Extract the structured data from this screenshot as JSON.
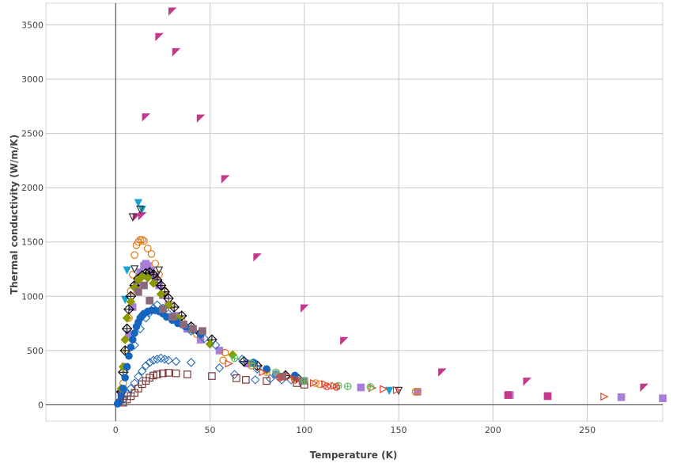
{
  "chart_data": {
    "type": "scatter",
    "title": "",
    "xlabel": "Temperature (K)",
    "ylabel": "Thermal conductivity (W/m/K)",
    "xlim": [
      -37,
      290
    ],
    "ylim": [
      -150,
      3700
    ],
    "x_ticks": [
      0,
      50,
      100,
      150,
      200,
      250
    ],
    "y_ticks": [
      0,
      500,
      1000,
      1500,
      2000,
      2500,
      3000,
      3500
    ],
    "grid": true,
    "legend": "none",
    "series": [
      {
        "marker": "triangle-ul",
        "color": "#c2388b",
        "filled": true,
        "points": [
          [
            30,
            3625
          ],
          [
            23,
            3390
          ],
          [
            32,
            3250
          ],
          [
            16,
            2650
          ],
          [
            45,
            2640
          ],
          [
            58,
            2080
          ],
          [
            75,
            1360
          ],
          [
            100,
            890
          ],
          [
            121,
            590
          ],
          [
            173,
            300
          ],
          [
            218,
            215
          ],
          [
            280,
            160
          ],
          [
            14,
            1740
          ],
          [
            11,
            1730
          ]
        ]
      },
      {
        "marker": "square",
        "color": "#a97ed9",
        "filled": true,
        "points": [
          [
            3,
            120
          ],
          [
            5,
            350
          ],
          [
            7,
            650
          ],
          [
            9,
            900
          ],
          [
            11,
            1100
          ],
          [
            13,
            1220
          ],
          [
            15,
            1280
          ],
          [
            16,
            1300
          ],
          [
            17,
            1280
          ],
          [
            19,
            1240
          ],
          [
            21,
            1180
          ],
          [
            23,
            1100
          ],
          [
            25,
            1010
          ],
          [
            28,
            920
          ],
          [
            32,
            820
          ],
          [
            38,
            700
          ],
          [
            45,
            600
          ],
          [
            55,
            500
          ],
          [
            70,
            380
          ],
          [
            85,
            280
          ],
          [
            100,
            220
          ],
          [
            130,
            160
          ],
          [
            160,
            120
          ],
          [
            209,
            90
          ],
          [
            229,
            80
          ],
          [
            268,
            70
          ],
          [
            290,
            60
          ]
        ]
      },
      {
        "marker": "circle-open",
        "color": "#e07b17",
        "filled": false,
        "points": [
          [
            4,
            200
          ],
          [
            6,
            500
          ],
          [
            7,
            800
          ],
          [
            8,
            1050
          ],
          [
            9,
            1200
          ],
          [
            10,
            1380
          ],
          [
            11,
            1470
          ],
          [
            12,
            1500
          ],
          [
            13,
            1520
          ],
          [
            14,
            1520
          ],
          [
            15,
            1510
          ],
          [
            17,
            1440
          ],
          [
            19,
            1390
          ],
          [
            21,
            1300
          ],
          [
            23,
            1200
          ],
          [
            26,
            1050
          ],
          [
            30,
            920
          ],
          [
            35,
            780
          ],
          [
            43,
            650
          ],
          [
            58,
            480
          ],
          [
            80,
            300
          ],
          [
            108,
            190
          ],
          [
            160,
            120
          ]
        ]
      },
      {
        "marker": "triangle-down",
        "color": "#18a3d6",
        "filled": true,
        "points": [
          [
            5,
            970
          ],
          [
            6,
            1240
          ],
          [
            12,
            1860
          ],
          [
            14,
            1800
          ],
          [
            145,
            130
          ]
        ]
      },
      {
        "marker": "triangle-down-open",
        "color": "#333333",
        "filled": false,
        "points": [
          [
            9,
            1730
          ],
          [
            13,
            1800
          ],
          [
            10,
            1250
          ],
          [
            23,
            1240
          ],
          [
            150,
            130
          ]
        ]
      },
      {
        "marker": "diamond-cross",
        "color": "#000000",
        "filled": false,
        "points": [
          [
            3,
            120
          ],
          [
            4,
            300
          ],
          [
            5,
            500
          ],
          [
            6,
            700
          ],
          [
            7,
            880
          ],
          [
            8,
            1000
          ],
          [
            10,
            1100
          ],
          [
            12,
            1160
          ],
          [
            14,
            1190
          ],
          [
            16,
            1210
          ],
          [
            18,
            1220
          ],
          [
            20,
            1200
          ],
          [
            22,
            1150
          ],
          [
            24,
            1100
          ],
          [
            26,
            1040
          ],
          [
            28,
            980
          ],
          [
            31,
            900
          ],
          [
            35,
            820
          ],
          [
            40,
            720
          ],
          [
            45,
            660
          ],
          [
            51,
            600
          ],
          [
            68,
            400
          ],
          [
            75,
            360
          ],
          [
            90,
            270
          ],
          [
            96,
            250
          ]
        ]
      },
      {
        "marker": "diamond",
        "color": "#8a9a00",
        "filled": true,
        "points": [
          [
            3,
            150
          ],
          [
            4,
            350
          ],
          [
            5,
            600
          ],
          [
            6,
            800
          ],
          [
            8,
            950
          ],
          [
            10,
            1080
          ],
          [
            12,
            1150
          ],
          [
            14,
            1180
          ],
          [
            17,
            1170
          ],
          [
            20,
            1120
          ],
          [
            24,
            1020
          ],
          [
            28,
            920
          ],
          [
            33,
            800
          ],
          [
            40,
            700
          ],
          [
            50,
            560
          ],
          [
            62,
            460
          ],
          [
            80,
            320
          ],
          [
            95,
            250
          ]
        ]
      },
      {
        "marker": "diamond-open",
        "color": "#2a6fb5",
        "filled": false,
        "points": [
          [
            4,
            50
          ],
          [
            6,
            100
          ],
          [
            8,
            150
          ],
          [
            10,
            200
          ],
          [
            12,
            260
          ],
          [
            14,
            310
          ],
          [
            16,
            360
          ],
          [
            18,
            390
          ],
          [
            20,
            410
          ],
          [
            22,
            420
          ],
          [
            24,
            430
          ],
          [
            26,
            420
          ],
          [
            28,
            410
          ],
          [
            32,
            400
          ],
          [
            40,
            390
          ],
          [
            55,
            340
          ],
          [
            63,
            280
          ],
          [
            74,
            230
          ],
          [
            82,
            240
          ],
          [
            88,
            230
          ],
          [
            93,
            230
          ],
          [
            10,
            550
          ],
          [
            13,
            700
          ],
          [
            16,
            800
          ],
          [
            18,
            850
          ],
          [
            20,
            890
          ],
          [
            22,
            920
          ],
          [
            25,
            890
          ],
          [
            28,
            840
          ],
          [
            33,
            760
          ],
          [
            40,
            680
          ],
          [
            47,
            610
          ],
          [
            53,
            550
          ],
          [
            67,
            420
          ],
          [
            75,
            330
          ],
          [
            85,
            280
          ]
        ]
      },
      {
        "marker": "circle",
        "color": "#1565c0",
        "filled": true,
        "points": [
          [
            1,
            10
          ],
          [
            2,
            30
          ],
          [
            3,
            80
          ],
          [
            4,
            150
          ],
          [
            5,
            250
          ],
          [
            6,
            350
          ],
          [
            7,
            450
          ],
          [
            8,
            530
          ],
          [
            9,
            600
          ],
          [
            10,
            660
          ],
          [
            11,
            720
          ],
          [
            12,
            760
          ],
          [
            13,
            800
          ],
          [
            14,
            820
          ],
          [
            15,
            840
          ],
          [
            17,
            860
          ],
          [
            19,
            870
          ],
          [
            21,
            870
          ],
          [
            23,
            860
          ],
          [
            25,
            840
          ],
          [
            27,
            810
          ],
          [
            30,
            780
          ],
          [
            33,
            750
          ],
          [
            37,
            720
          ],
          [
            41,
            690
          ],
          [
            45,
            650
          ],
          [
            73,
            390
          ],
          [
            80,
            330
          ],
          [
            95,
            270
          ]
        ]
      },
      {
        "marker": "square-open",
        "color": "#7a3a3a",
        "filled": false,
        "points": [
          [
            4,
            20
          ],
          [
            6,
            50
          ],
          [
            8,
            80
          ],
          [
            10,
            110
          ],
          [
            12,
            150
          ],
          [
            14,
            190
          ],
          [
            16,
            220
          ],
          [
            18,
            250
          ],
          [
            20,
            270
          ],
          [
            22,
            280
          ],
          [
            25,
            290
          ],
          [
            28,
            295
          ],
          [
            32,
            290
          ],
          [
            38,
            280
          ],
          [
            51,
            265
          ],
          [
            64,
            245
          ],
          [
            69,
            230
          ],
          [
            80,
            220
          ],
          [
            96,
            200
          ],
          [
            100,
            185
          ]
        ]
      },
      {
        "marker": "square",
        "color": "#8a6a7a",
        "filled": true,
        "points": [
          [
            12,
            1040
          ],
          [
            15,
            1100
          ],
          [
            18,
            960
          ],
          [
            25,
            880
          ],
          [
            30,
            810
          ],
          [
            36,
            740
          ],
          [
            41,
            700
          ],
          [
            46,
            680
          ],
          [
            88,
            260
          ],
          [
            99,
            220
          ]
        ]
      },
      {
        "marker": "triangle-right-open",
        "color": "#e2402a",
        "filled": false,
        "points": [
          [
            60,
            380
          ],
          [
            78,
            300
          ],
          [
            92,
            260
          ],
          [
            105,
            200
          ],
          [
            111,
            190
          ],
          [
            116,
            175
          ],
          [
            136,
            155
          ],
          [
            142,
            145
          ],
          [
            149,
            135
          ],
          [
            259,
            75
          ]
        ]
      },
      {
        "marker": "circle-plus",
        "color": "#5cc060",
        "filled": false,
        "points": [
          [
            63,
            430
          ],
          [
            72,
            380
          ],
          [
            85,
            300
          ],
          [
            100,
            220
          ],
          [
            118,
            175
          ],
          [
            123,
            170
          ],
          [
            135,
            165
          ]
        ]
      },
      {
        "marker": "circle-cross-open",
        "color": "#e2402a",
        "filled": false,
        "points": [
          [
            87,
            250
          ],
          [
            95,
            230
          ],
          [
            112,
            170
          ],
          [
            117,
            165
          ]
        ]
      },
      {
        "marker": "circle-open",
        "color": "#e07b17",
        "filled": false,
        "points": [
          [
            57,
            410
          ],
          [
            72,
            360
          ],
          [
            106,
            200
          ],
          [
            159,
            120
          ]
        ]
      },
      {
        "marker": "square",
        "color": "#c2388b",
        "filled": true,
        "points": [
          [
            208,
            90
          ],
          [
            229,
            80
          ]
        ]
      }
    ]
  }
}
